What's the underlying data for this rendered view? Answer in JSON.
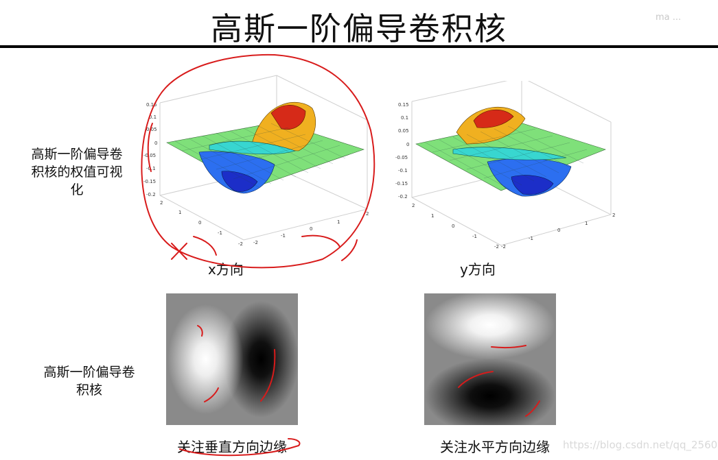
{
  "page": {
    "title": "高斯一阶偏导卷积核",
    "top_watermark": "ma ...",
    "watermark": "https://blog.csdn.net/qq_25601345"
  },
  "row1": {
    "label_lines": [
      "高斯一阶偏导卷",
      "积核的权值可视",
      "化"
    ],
    "left_caption": "x方向",
    "right_caption": "y方向",
    "z_ticks": [
      "0.15",
      "0.1",
      "0.05",
      "0",
      "-0.05",
      "-0.1",
      "-0.15",
      "-0.2"
    ],
    "xy_ticks": [
      "2",
      "1",
      "0",
      "-1",
      "-2"
    ]
  },
  "row2": {
    "label_lines": [
      "高斯一阶偏导卷",
      "积核"
    ],
    "left_caption": "关注垂直方向边缘",
    "right_caption": "关注水平方向边缘"
  },
  "colors": {
    "ink_red": "#d81b1b",
    "surface_low": "#1f3cc8",
    "surface_high": "#c81414"
  }
}
